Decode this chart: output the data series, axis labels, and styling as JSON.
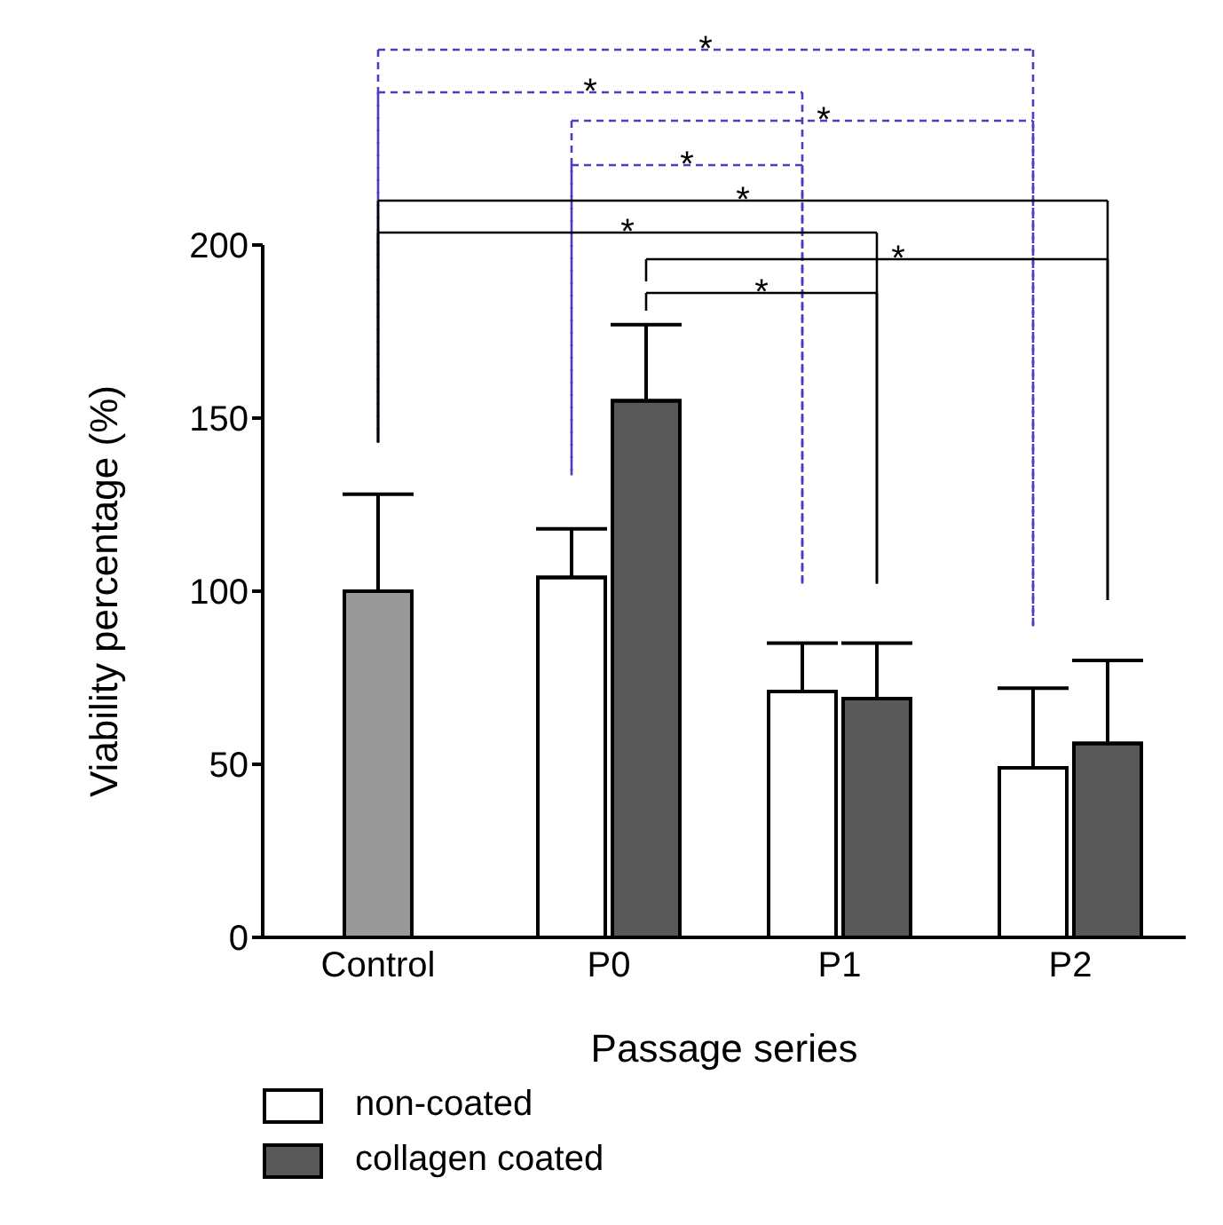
{
  "chart_data": {
    "type": "bar",
    "xlabel": "Passage series",
    "ylabel": "Viability percentage (%)",
    "categories": [
      "Control",
      "P0",
      "P1",
      "P2"
    ],
    "series": [
      {
        "color": "#999999",
        "values": [
          100,
          null,
          null,
          null
        ],
        "errors": [
          [
            100,
            128
          ],
          null,
          null,
          null
        ]
      },
      {
        "name": "non-coated",
        "color": "#ffffff",
        "values": [
          null,
          104,
          71,
          49
        ],
        "errors": [
          null,
          [
            104,
            118
          ],
          [
            71,
            85
          ],
          [
            49,
            72
          ]
        ]
      },
      {
        "name": "collagen coated",
        "color": "#595959",
        "values": [
          null,
          155,
          69,
          56
        ],
        "errors": [
          null,
          [
            155,
            177
          ],
          [
            69,
            85
          ],
          [
            56,
            80
          ]
        ]
      }
    ],
    "ylim": [
      0,
      200
    ],
    "yticks": [
      0,
      50,
      100,
      150,
      200
    ],
    "grid": false,
    "legend": "bottom",
    "annotations": [
      "*",
      "*",
      "*",
      "*",
      "*",
      "*",
      "*",
      "*"
    ]
  }
}
